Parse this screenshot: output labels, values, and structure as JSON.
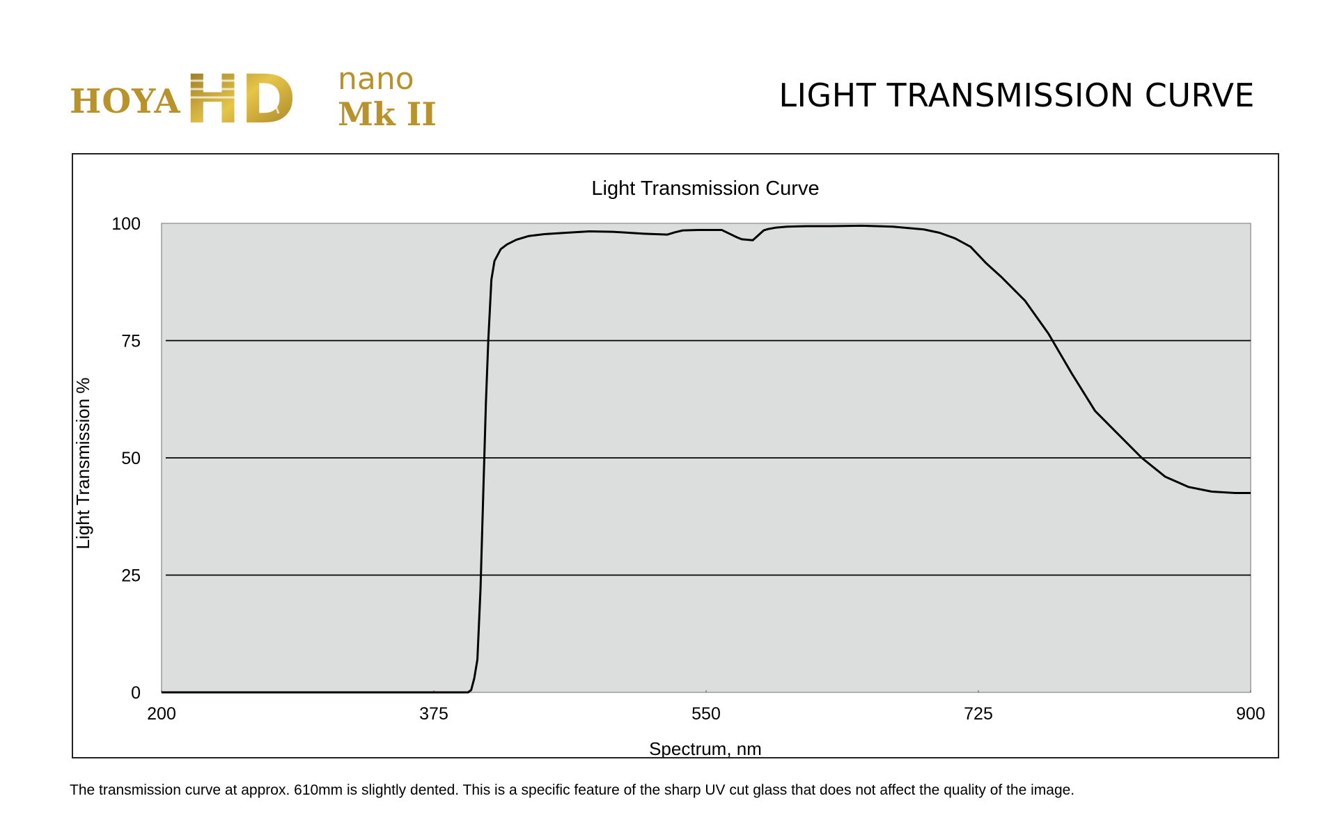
{
  "brand": {
    "logo_hoya": "HOYA",
    "logo_hd": "HD",
    "logo_nano": "nano",
    "logo_mk": "Mk II",
    "gold_color": "#b8922a",
    "gold_light": "#e3c04e"
  },
  "heading": "LIGHT TRANSMISSION CURVE",
  "footnote": "The transmission curve at approx. 610mm is slightly dented. This is a specific feature of the sharp UV cut glass that does not affect the quality of the image.",
  "chart_data": {
    "type": "line",
    "title": "Light Transmission Curve",
    "xlabel": "Spectrum, nm",
    "ylabel": "Light Transmission %",
    "xlim": [
      200,
      900
    ],
    "ylim": [
      0,
      100
    ],
    "xticks": [
      200,
      375,
      550,
      725,
      900
    ],
    "yticks": [
      0,
      25,
      50,
      75,
      100
    ],
    "grid": "horizontal",
    "plot_background": "#dcdedd",
    "line_color": "#000000",
    "series": [
      {
        "x": [
          200,
          300,
          375,
          397,
          399,
          401,
          403,
          405,
          407,
          408.5,
          410,
          412,
          414,
          418,
          422,
          428,
          436,
          446,
          460,
          475,
          490,
          510,
          525,
          530,
          535,
          545,
          560,
          570,
          573,
          580,
          587,
          590,
          595,
          602,
          615,
          630,
          650,
          670,
          690,
          700,
          710,
          720,
          730,
          740,
          755,
          770,
          785,
          800,
          815,
          830,
          845,
          860,
          875,
          890,
          900
        ],
        "y": [
          0,
          0,
          0,
          0,
          0.5,
          3,
          7,
          22,
          45,
          62,
          75,
          88,
          92,
          94.5,
          95.5,
          96.5,
          97.3,
          97.7,
          98,
          98.3,
          98.2,
          97.8,
          97.6,
          98.1,
          98.5,
          98.6,
          98.6,
          97,
          96.6,
          96.4,
          98.5,
          98.8,
          99.1,
          99.3,
          99.4,
          99.4,
          99.5,
          99.3,
          98.7,
          98,
          96.8,
          95,
          91.5,
          88.5,
          83.5,
          76.5,
          68,
          60,
          55,
          50,
          46,
          43.8,
          42.8,
          42.5,
          42.5
        ]
      }
    ]
  }
}
